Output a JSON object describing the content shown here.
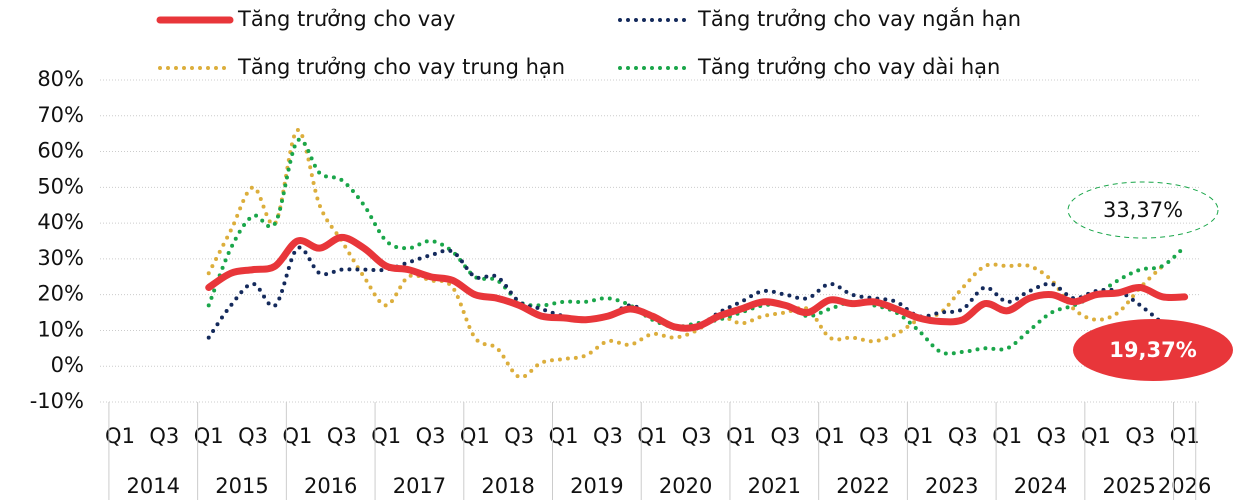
{
  "chart_data": {
    "type": "line",
    "categories": [
      "Q1",
      null,
      "Q3",
      null,
      "Q1",
      null,
      "Q3",
      null,
      "Q1",
      null,
      "Q3",
      null,
      "Q1",
      null,
      "Q3",
      null,
      "Q1",
      null,
      "Q3",
      null,
      "Q1",
      null,
      "Q3",
      null,
      "Q1",
      null,
      "Q3",
      null,
      "Q1",
      null,
      "Q3",
      null,
      "Q1",
      null,
      "Q3",
      null,
      "Q1",
      null,
      "Q3",
      null,
      "Q1",
      null,
      "Q3",
      null,
      "Q1",
      null,
      "Q3",
      null,
      "Q1"
    ],
    "years": [
      "2014",
      "2015",
      "2016",
      "2017",
      "2018",
      "2019",
      "2020",
      "2021",
      "2022",
      "2023",
      "2024",
      "2025",
      "2026"
    ],
    "ylim": [
      -10,
      80
    ],
    "yticks": [
      {
        "value": 80,
        "label": "80%"
      },
      {
        "value": 70,
        "label": "70%"
      },
      {
        "value": 60,
        "label": "60%"
      },
      {
        "value": 50,
        "label": "50%"
      },
      {
        "value": 40,
        "label": "40%"
      },
      {
        "value": 30,
        "label": "30%"
      },
      {
        "value": 20,
        "label": "20%"
      },
      {
        "value": 10,
        "label": "10%"
      },
      {
        "value": 0,
        "label": "0%"
      },
      {
        "value": -10,
        "label": "-10%"
      }
    ],
    "grid": true,
    "series": [
      {
        "name": "Tăng trưởng cho vay",
        "color": "#e8363a",
        "style": "solid",
        "values": [
          null,
          null,
          null,
          null,
          22,
          26,
          27,
          28,
          35,
          33,
          36,
          33,
          28,
          27,
          25,
          24,
          20,
          19,
          17,
          14,
          13.5,
          13,
          14,
          16,
          14,
          11,
          11,
          14,
          16,
          18,
          17,
          15,
          18.5,
          17.5,
          18,
          16,
          13.5,
          12.5,
          13,
          17.5,
          15.5,
          19,
          20,
          18,
          20,
          20.5,
          22,
          19.4,
          19.37
        ],
        "value_labels": [
          null,
          null,
          null,
          null,
          null,
          null,
          null,
          null,
          null,
          null,
          null,
          null,
          null,
          null,
          null,
          null,
          null,
          null,
          null,
          null,
          null,
          null,
          null,
          null,
          null,
          null,
          null,
          null,
          null,
          null,
          null,
          null,
          null,
          null,
          null,
          null,
          null,
          null,
          null,
          null,
          null,
          null,
          null,
          null,
          null,
          null,
          null,
          null,
          "19,37%"
        ]
      },
      {
        "name": "Tăng trưởng cho vay ngắn hạn",
        "color": "#142a5c",
        "style": "dotted",
        "values": [
          null,
          null,
          null,
          null,
          8,
          17,
          23,
          17,
          33,
          26,
          27,
          27,
          27,
          29,
          31,
          32,
          25,
          25,
          18,
          16,
          14,
          13,
          14,
          17,
          14,
          11,
          11,
          15,
          18,
          21,
          20,
          19,
          23,
          20,
          19,
          18,
          14,
          15,
          16,
          22,
          18,
          21,
          23,
          19,
          21,
          21,
          17,
          12,
          null
        ]
      },
      {
        "name": "Tăng trưởng cho vay trung hạn",
        "color": "#dcae3c",
        "style": "dotted",
        "values": [
          null,
          null,
          null,
          null,
          26,
          38,
          50,
          40,
          66,
          45,
          35,
          25,
          17,
          25,
          24,
          22,
          8,
          5,
          -3,
          1,
          2,
          3,
          7,
          6,
          9,
          8,
          10,
          14,
          12,
          14,
          15,
          16,
          8,
          8,
          7,
          9,
          13,
          15,
          22,
          28,
          28,
          28,
          24,
          16,
          13,
          15,
          22,
          28,
          null
        ]
      },
      {
        "name": "Tăng trưởng cho vay dài hạn",
        "color": "#1aa64a",
        "style": "dotted",
        "values": [
          null,
          null,
          null,
          null,
          17,
          33,
          42,
          40,
          63,
          54,
          52,
          45,
          35,
          33,
          35,
          32,
          25,
          24,
          18,
          17,
          18,
          18,
          19,
          17,
          13,
          11,
          12,
          13,
          15,
          17,
          17,
          14,
          16,
          18,
          17,
          15,
          10,
          4,
          4,
          5,
          5,
          10,
          15,
          17,
          20,
          24,
          27,
          28,
          33.37
        ],
        "value_labels": [
          null,
          null,
          null,
          null,
          null,
          null,
          null,
          null,
          null,
          null,
          null,
          null,
          null,
          null,
          null,
          null,
          null,
          null,
          null,
          null,
          null,
          null,
          null,
          null,
          null,
          null,
          null,
          null,
          null,
          null,
          null,
          null,
          null,
          null,
          null,
          null,
          null,
          null,
          null,
          null,
          null,
          null,
          null,
          null,
          null,
          null,
          null,
          null,
          "33,37%"
        ]
      }
    ]
  }
}
